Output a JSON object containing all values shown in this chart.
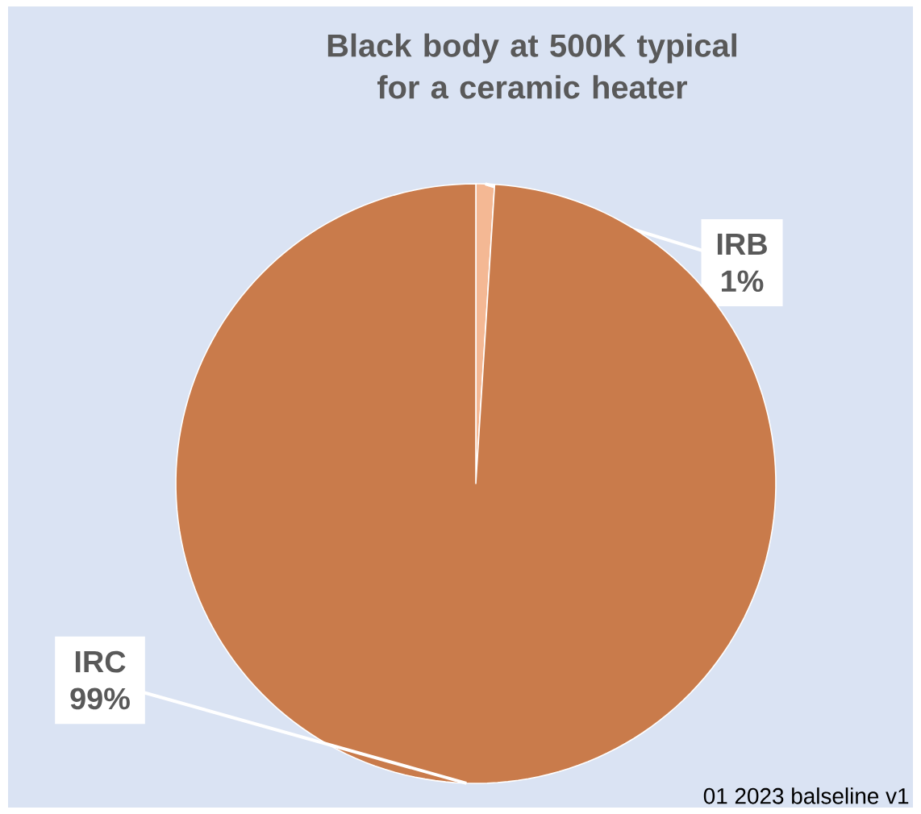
{
  "chart_data": {
    "type": "pie",
    "title": "Black body at 500K typical for a ceramic heater",
    "categories": [
      "IRB",
      "IRC"
    ],
    "values": [
      1,
      99
    ],
    "colors": [
      "#f4b894",
      "#c97b4b"
    ],
    "value_labels": [
      "1%",
      "99%"
    ],
    "annotations": [
      "01 2023 balseline v1"
    ]
  }
}
